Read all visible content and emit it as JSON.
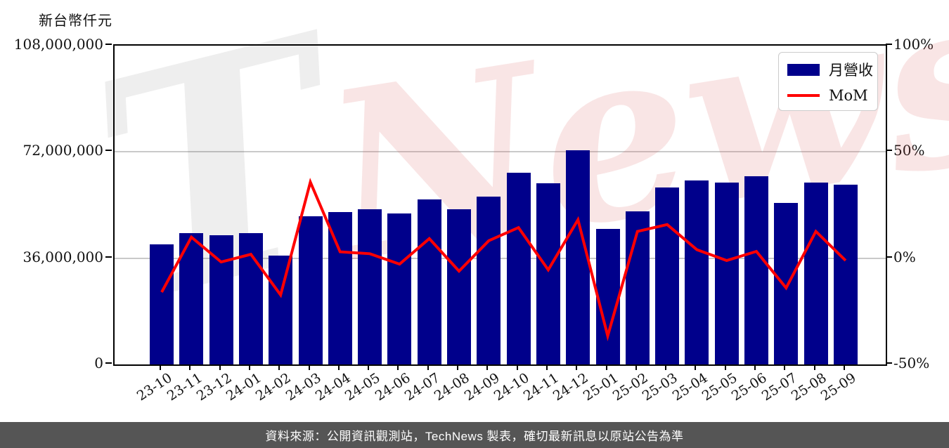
{
  "page": {
    "footer": {
      "text": "資料來源：公開資訊觀測站，TechNews 製表，確切最新訊息以原站公告為準"
    }
  },
  "legend": {
    "bar_label": "月營收",
    "line_label": "MoM"
  },
  "watermark": {
    "text": "TechNews",
    "gray_part": "T",
    "red_part": "News"
  },
  "colors": {
    "bar": "#00008B",
    "line": "#FF0000",
    "grid": "#c9c9c9",
    "axis": "#000000",
    "footer_bg": "#555555",
    "footer_text": "#ffffff",
    "watermark_gray": "rgba(40,40,40,0.08)",
    "watermark_red": "rgba(219,95,95,0.16)"
  },
  "chart_data": {
    "type": "bar",
    "subtype": "bar+line dual-axis combo",
    "title": "",
    "categories": [
      "23-10",
      "23-11",
      "23-12",
      "24-01",
      "24-02",
      "24-03",
      "24-04",
      "24-05",
      "24-06",
      "24-07",
      "24-08",
      "24-09",
      "24-10",
      "24-11",
      "24-12",
      "25-01",
      "25-02",
      "25-03",
      "25-04",
      "25-05",
      "25-06",
      "25-07",
      "25-08",
      "25-09"
    ],
    "series": [
      {
        "name": "月營收",
        "type": "bar",
        "yaxis": "left",
        "color": "#00008B",
        "unit": "新台幣仟元",
        "values": [
          40600000,
          44600000,
          43800000,
          44600000,
          36900000,
          50100000,
          51600000,
          52700000,
          51200000,
          55900000,
          52500000,
          56800000,
          65000000,
          61400000,
          72500000,
          46000000,
          51800000,
          60000000,
          62400000,
          61700000,
          63700000,
          54800000,
          61700000,
          61000000
        ]
      },
      {
        "name": "MoM",
        "type": "line",
        "yaxis": "right",
        "color": "#FF0000",
        "unit": "%",
        "values": [
          -16.0,
          9.9,
          -1.8,
          1.8,
          -17.3,
          35.8,
          3.0,
          2.1,
          -2.8,
          9.2,
          -6.1,
          8.2,
          14.4,
          -5.5,
          18.1,
          -36.6,
          12.6,
          15.8,
          4.0,
          -1.1,
          3.2,
          -14.0,
          12.6,
          -1.1
        ]
      }
    ],
    "left_axis": {
      "title": "新台幣仟元",
      "range": [
        0,
        108000000
      ],
      "ticks": [
        {
          "value": 0,
          "label": "0"
        },
        {
          "value": 36000000,
          "label": "36,000,000"
        },
        {
          "value": 72000000,
          "label": "72,000,000"
        },
        {
          "value": 108000000,
          "label": "108,000,000"
        }
      ]
    },
    "right_axis": {
      "title": "",
      "range": [
        -50,
        100
      ],
      "ticks": [
        {
          "value": -50,
          "label": "-50%"
        },
        {
          "value": 0,
          "label": "0%"
        },
        {
          "value": 50,
          "label": "50%"
        },
        {
          "value": 100,
          "label": "100%"
        }
      ]
    },
    "grid": "horizontal gridlines at right-axis 0% and 50% (= left-axis 36,000,000 and 72,000,000)",
    "legend_position": "top-right inside plot",
    "x_tick_rotation_deg": -33
  }
}
